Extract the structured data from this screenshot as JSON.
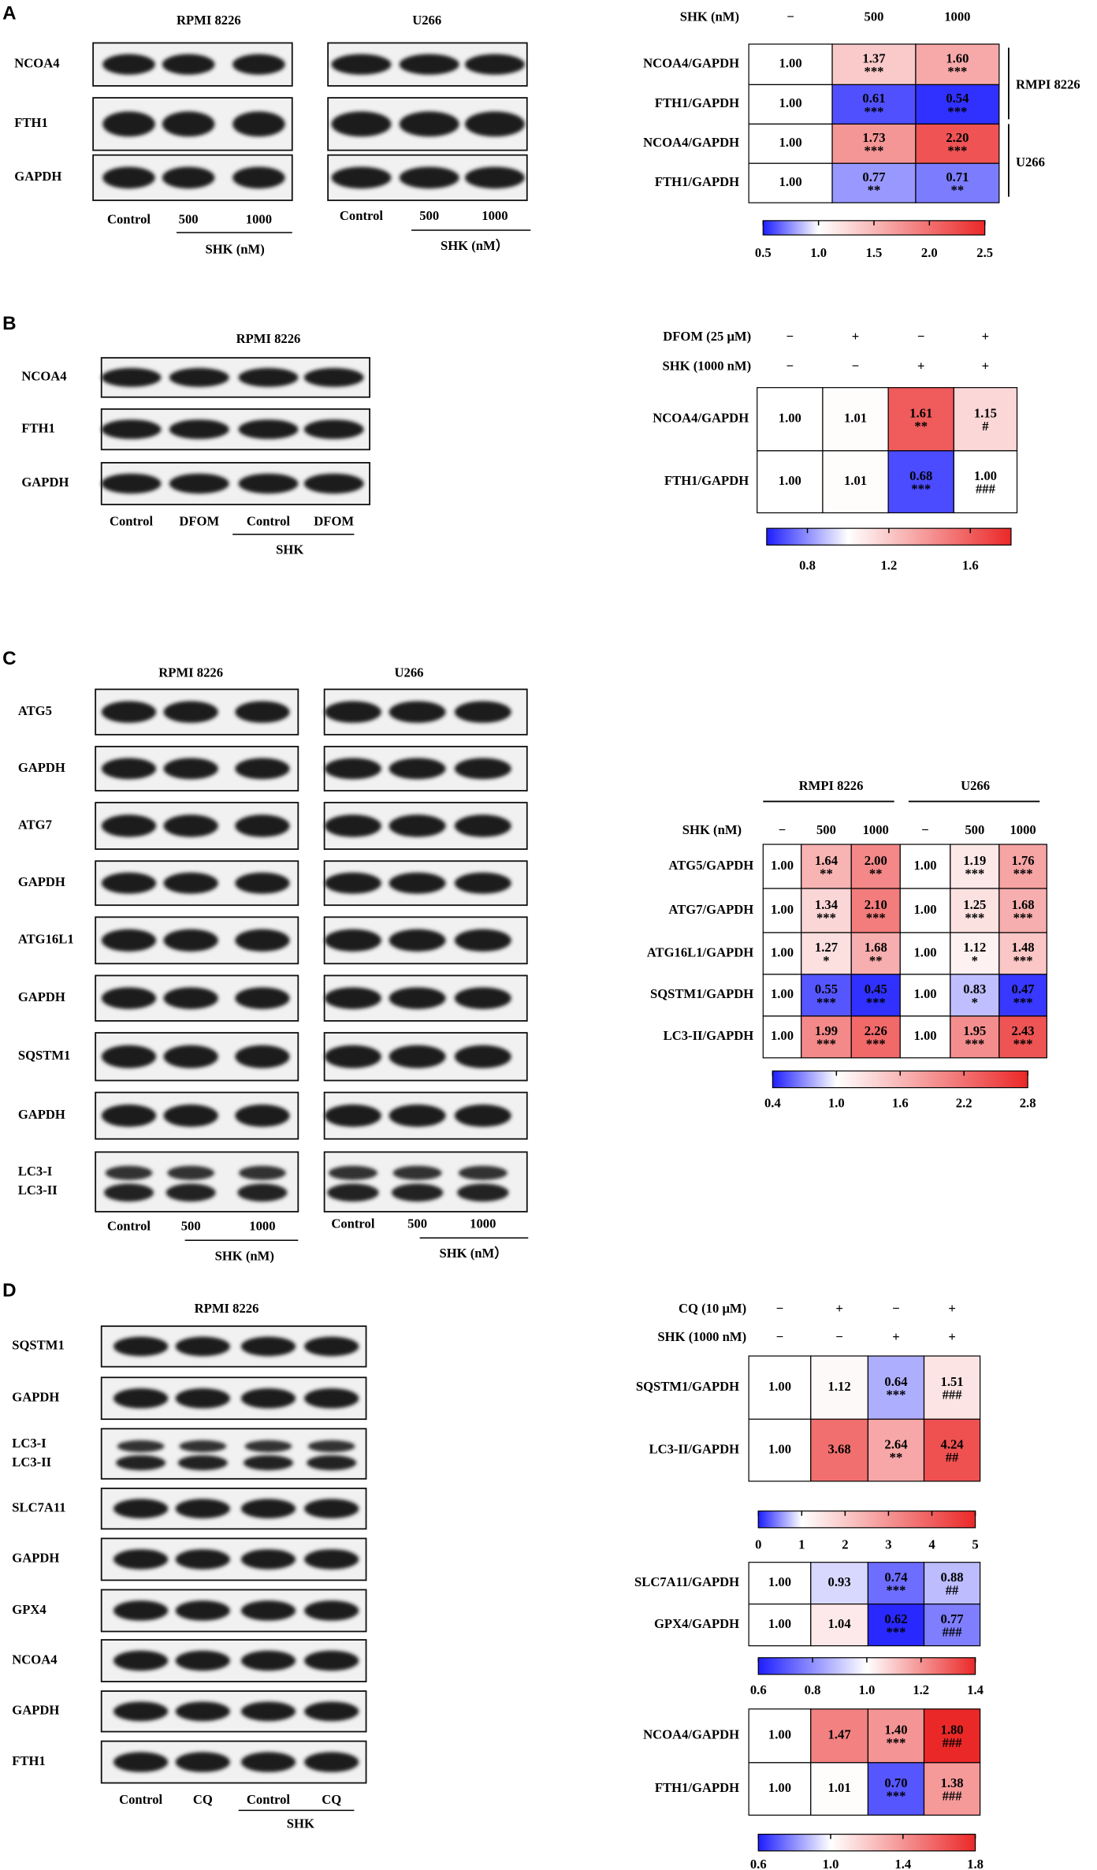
{
  "panels": [
    {
      "letter": "A",
      "blots": [
        {
          "title": "RPMI 8226",
          "rows": [
            "NCOA4",
            "FTH1",
            "GAPDH"
          ],
          "lanes": [
            "Control",
            "500",
            "1000"
          ],
          "treatment": "SHK (nM)"
        },
        {
          "title": "U266",
          "lanes": [
            "Control",
            "500",
            "1000"
          ],
          "treatment": "SHK (nM）"
        }
      ],
      "heatmaps": [
        {
          "headers": [
            {
              "label": "SHK (nM)",
              "cols": [
                "−",
                "500",
                "1000"
              ]
            }
          ],
          "rows": [
            "NCOA4/GAPDH",
            "FTH1/GAPDH",
            "NCOA4/GAPDH",
            "FTH1/GAPDH"
          ],
          "row_groups": [
            "RMPI 8226",
            "U266"
          ],
          "values": [
            [
              1,
              1.37,
              1.6
            ],
            [
              1,
              0.61,
              0.54
            ],
            [
              1,
              1.73,
              2.2
            ],
            [
              1,
              0.77,
              0.71
            ]
          ],
          "value_labels": [
            [
              "1.00",
              "1.37",
              "1.60"
            ],
            [
              "1.00",
              "0.61",
              "0.54"
            ],
            [
              "1.00",
              "1.73",
              "2.20"
            ],
            [
              "1.00",
              "0.77",
              "0.71"
            ]
          ],
          "significance": [
            [
              null,
              "***",
              "***"
            ],
            [
              null,
              "***",
              "***"
            ],
            [
              null,
              "***",
              "***"
            ],
            [
              null,
              "**",
              "**"
            ]
          ],
          "colorbar": {
            "lim": [
              0.5,
              2.5
            ],
            "ticks": [
              0.5,
              {
                "value": 1,
                "label": "1.0"
              },
              1.5,
              {
                "value": 2,
                "label": "2.0"
              },
              2.5
            ]
          }
        }
      ]
    },
    {
      "letter": "B",
      "blots": [
        {
          "title": "RPMI 8226",
          "rows": [
            "NCOA4",
            "FTH1",
            "GAPDH"
          ],
          "lanes": [
            "Control",
            "DFOM",
            "Control",
            "DFOM"
          ],
          "treatment": "SHK"
        }
      ],
      "heatmaps": [
        {
          "headers": [
            {
              "label": "DFOM (25 μM)",
              "cols": [
                "−",
                "+",
                "−",
                "+"
              ]
            },
            {
              "label": "SHK (1000 nM)",
              "cols": [
                "−",
                "−",
                "+",
                "+"
              ]
            }
          ],
          "rows": [
            "NCOA4/GAPDH",
            "FTH1/GAPDH"
          ],
          "values": [
            [
              1,
              1.01,
              1.61,
              1.15
            ],
            [
              1,
              1.01,
              0.68,
              1
            ]
          ],
          "value_labels": [
            [
              "1.00",
              "1.01",
              "1.61",
              "1.15"
            ],
            [
              "1.00",
              "1.01",
              "0.68",
              "1.00"
            ]
          ],
          "significance": [
            [
              null,
              null,
              "**",
              "#"
            ],
            [
              null,
              null,
              "***",
              "###"
            ]
          ],
          "colorbar": {
            "lim": [
              0.6,
              1.8
            ],
            "ticks": [
              0.8,
              1.2,
              1.6
            ]
          }
        }
      ]
    },
    {
      "letter": "C",
      "blots": [
        {
          "title": "RPMI 8226",
          "rows": [
            "ATG5",
            "GAPDH",
            "ATG7",
            "GAPDH",
            "ATG16L1",
            "GAPDH",
            "SQSTM1",
            "GAPDH",
            [
              "LC3-I",
              "LC3-II"
            ]
          ],
          "lanes": [
            "Control",
            "500",
            "1000"
          ],
          "treatment": "SHK (nM)"
        },
        {
          "title": "U266",
          "lanes": [
            "Control",
            "500",
            "1000"
          ],
          "treatment": "SHK (nM）"
        }
      ],
      "heatmaps": [
        {
          "column_groups": [
            "RMPI 8226",
            "U266"
          ],
          "headers": [
            {
              "label": "SHK (nM)",
              "cols": [
                "−",
                "500",
                "1000",
                "−",
                "500",
                "1000"
              ]
            }
          ],
          "rows": [
            "ATG5/GAPDH",
            "ATG7/GAPDH",
            "ATG16L1/GAPDH",
            "SQSTM1/GAPDH",
            "LC3-II/GAPDH"
          ],
          "values": [
            [
              1,
              1.64,
              2,
              1,
              1.19,
              1.76
            ],
            [
              1,
              1.34,
              2.1,
              1,
              1.25,
              1.68
            ],
            [
              1,
              1.27,
              1.68,
              1,
              1.12,
              1.48
            ],
            [
              1,
              0.55,
              0.45,
              1,
              0.83,
              0.47
            ],
            [
              1,
              1.99,
              2.26,
              1,
              1.95,
              2.43
            ]
          ],
          "value_labels": [
            [
              "1.00",
              "1.64",
              "2.00",
              "1.00",
              "1.19",
              "1.76"
            ],
            [
              "1.00",
              "1.34",
              "2.10",
              "1.00",
              "1.25",
              "1.68"
            ],
            [
              "1.00",
              "1.27",
              "1.68",
              "1.00",
              "1.12",
              "1.48"
            ],
            [
              "1.00",
              "0.55",
              "0.45",
              "1.00",
              "0.83",
              "0.47"
            ],
            [
              "1.00",
              "1.99",
              "2.26",
              "1.00",
              "1.95",
              "2.43"
            ]
          ],
          "significance": [
            [
              null,
              "**",
              "**",
              null,
              "***",
              "***"
            ],
            [
              null,
              "***",
              "***",
              null,
              "***",
              "***"
            ],
            [
              null,
              "*",
              "**",
              null,
              "*",
              "***"
            ],
            [
              null,
              "***",
              "***",
              null,
              "*",
              "***"
            ],
            [
              null,
              "***",
              "***",
              null,
              "***",
              "***"
            ]
          ],
          "colorbar": {
            "lim": [
              0.4,
              2.8
            ],
            "ticks": [
              0.4,
              {
                "value": 1,
                "label": "1.0"
              },
              1.6,
              2.2,
              2.8
            ]
          }
        }
      ]
    },
    {
      "letter": "D",
      "blots": [
        {
          "title": "RPMI 8226",
          "rows": [
            "SQSTM1",
            "GAPDH",
            [
              "LC3-I",
              "LC3-II"
            ],
            "SLC7A11",
            "GAPDH",
            "GPX4",
            "NCOA4",
            "GAPDH",
            "FTH1"
          ],
          "lanes": [
            "Control",
            "CQ",
            "Control",
            "CQ"
          ],
          "treatment": "SHK"
        }
      ],
      "heatmaps": [
        {
          "headers": [
            {
              "label": "CQ (10 μM)",
              "cols": [
                "−",
                "+",
                "−",
                "+"
              ]
            },
            {
              "label": "SHK (1000 nM)",
              "cols": [
                "−",
                "−",
                "+",
                "+"
              ]
            }
          ],
          "rows": [
            "SQSTM1/GAPDH",
            "LC3-II/GAPDH"
          ],
          "values": [
            [
              1,
              1.12,
              0.64,
              1.51
            ],
            [
              1,
              3.68,
              2.64,
              4.24
            ]
          ],
          "value_labels": [
            [
              "1.00",
              "1.12",
              "0.64",
              "1.51"
            ],
            [
              "1.00",
              "3.68",
              "2.64",
              "4.24"
            ]
          ],
          "significance": [
            [
              null,
              null,
              "***",
              "###"
            ],
            [
              null,
              null,
              "**",
              "##"
            ]
          ],
          "colorbar": {
            "lim": [
              0,
              5
            ],
            "ticks": [
              0,
              1,
              2,
              3,
              4,
              5
            ]
          }
        },
        {
          "rows": [
            "SLC7A11/GAPDH",
            "GPX4/GAPDH"
          ],
          "values": [
            [
              1,
              0.93,
              0.74,
              0.88
            ],
            [
              1,
              1.04,
              0.62,
              0.77
            ]
          ],
          "value_labels": [
            [
              "1.00",
              "0.93",
              "0.74",
              "0.88"
            ],
            [
              "1.00",
              "1.04",
              "0.62",
              "0.77"
            ]
          ],
          "significance": [
            [
              null,
              null,
              "***",
              "##"
            ],
            [
              null,
              null,
              "***",
              "###"
            ]
          ],
          "colorbar": {
            "lim": [
              0.6,
              1.4
            ],
            "ticks": [
              0.6,
              0.8,
              {
                "value": 1,
                "label": "1.0"
              },
              1.2,
              1.4
            ]
          }
        },
        {
          "rows": [
            "NCOA4/GAPDH",
            "FTH1/GAPDH"
          ],
          "values": [
            [
              1,
              1.47,
              1.4,
              1.8
            ],
            [
              1,
              1.01,
              0.7,
              1.38
            ]
          ],
          "value_labels": [
            [
              "1.00",
              "1.47",
              "1.40",
              "1.80"
            ],
            [
              "1.00",
              "1.01",
              "0.70",
              "1.38"
            ]
          ],
          "significance": [
            [
              null,
              null,
              "***",
              "###"
            ],
            [
              null,
              null,
              "***",
              "###"
            ]
          ],
          "colorbar": {
            "lim": [
              0.6,
              1.8
            ],
            "ticks": [
              0.6,
              {
                "value": 1,
                "label": "1.0"
              },
              1.4,
              1.8
            ]
          }
        }
      ]
    }
  ]
}
